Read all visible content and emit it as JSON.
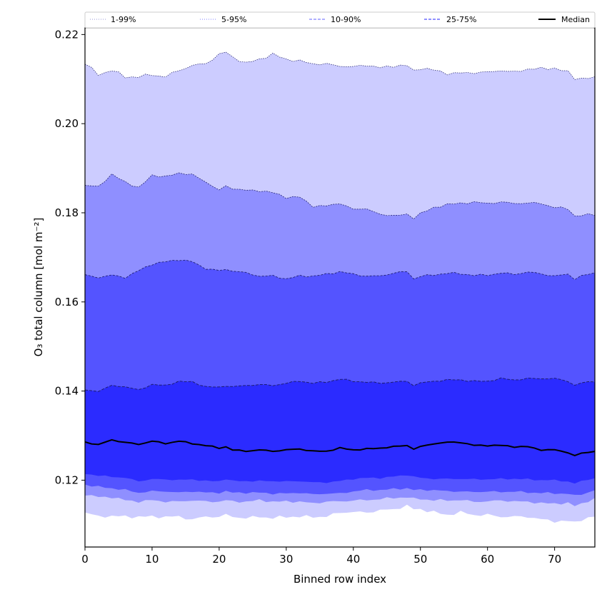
{
  "chart_data": {
    "type": "area",
    "xlabel": "Binned row index",
    "ylabel": "O₃ total column [mol m⁻²]",
    "xlim": [
      0,
      76
    ],
    "ylim": [
      0.105,
      0.2215
    ],
    "x_ticks": [
      0,
      10,
      20,
      30,
      40,
      50,
      60,
      70
    ],
    "y_ticks": [
      0.12,
      0.14,
      0.16,
      0.18,
      0.2,
      0.22
    ],
    "grid": false,
    "legend_placement": "top, horizontal row above plot",
    "legend": [
      {
        "label": "1-99%",
        "style": "dotted",
        "color": "#ccccff"
      },
      {
        "label": "5-95%",
        "style": "dotted",
        "color": "#9999ff"
      },
      {
        "label": "10-90%",
        "style": "dashed",
        "color": "#8080ff"
      },
      {
        "label": "25-75%",
        "style": "dashed",
        "color": "#4d4dff"
      },
      {
        "label": "Median",
        "style": "solid",
        "color": "#000000"
      }
    ],
    "band_colors": {
      "p1_p99": "#ccccff",
      "p5_p95": "#8f8fff",
      "p10_p90": "#5454ff",
      "p25_p75": "#2b2bff"
    },
    "knots": {
      "x": [
        0,
        2,
        4,
        6,
        8,
        10,
        12,
        14,
        16,
        18,
        20,
        21,
        22,
        24,
        26,
        28,
        30,
        32,
        34,
        36,
        38,
        40,
        42,
        44,
        46,
        48,
        49,
        50,
        52,
        54,
        56,
        58,
        60,
        62,
        64,
        66,
        68,
        70,
        72,
        73,
        74,
        76
      ],
      "p99": [
        0.2135,
        0.211,
        0.212,
        0.2105,
        0.2105,
        0.211,
        0.2105,
        0.212,
        0.213,
        0.2135,
        0.2155,
        0.216,
        0.215,
        0.2135,
        0.2145,
        0.2155,
        0.2145,
        0.214,
        0.2135,
        0.2133,
        0.213,
        0.2127,
        0.2132,
        0.2125,
        0.213,
        0.213,
        0.2118,
        0.2125,
        0.212,
        0.2113,
        0.2113,
        0.2115,
        0.2115,
        0.212,
        0.2115,
        0.2123,
        0.2123,
        0.2125,
        0.2115,
        0.2102,
        0.2102,
        0.2102
      ],
      "p95": [
        0.186,
        0.186,
        0.1885,
        0.187,
        0.1855,
        0.1885,
        0.188,
        0.189,
        0.1885,
        0.187,
        0.185,
        0.186,
        0.1855,
        0.185,
        0.185,
        0.1845,
        0.1835,
        0.1835,
        0.1815,
        0.1815,
        0.1822,
        0.1807,
        0.181,
        0.1795,
        0.1795,
        0.1795,
        0.1788,
        0.18,
        0.181,
        0.182,
        0.182,
        0.1825,
        0.182,
        0.1825,
        0.182,
        0.1823,
        0.182,
        0.1813,
        0.1808,
        0.1793,
        0.1795,
        0.1795
      ],
      "p90": [
        0.166,
        0.1655,
        0.166,
        0.1655,
        0.167,
        0.1685,
        0.169,
        0.1695,
        0.169,
        0.1675,
        0.167,
        0.1673,
        0.167,
        0.1665,
        0.1658,
        0.1658,
        0.1652,
        0.1658,
        0.1658,
        0.1662,
        0.1668,
        0.1662,
        0.1658,
        0.1658,
        0.1665,
        0.1668,
        0.1652,
        0.1658,
        0.166,
        0.1665,
        0.1663,
        0.166,
        0.166,
        0.1665,
        0.1662,
        0.1667,
        0.1663,
        0.1658,
        0.1662,
        0.1652,
        0.1658,
        0.1665
      ],
      "p75": [
        0.1402,
        0.14,
        0.1412,
        0.141,
        0.1402,
        0.1415,
        0.1412,
        0.1422,
        0.142,
        0.141,
        0.1408,
        0.1412,
        0.141,
        0.1412,
        0.1415,
        0.1412,
        0.1418,
        0.1422,
        0.1418,
        0.142,
        0.1427,
        0.1422,
        0.142,
        0.1418,
        0.142,
        0.1422,
        0.1413,
        0.1418,
        0.1422,
        0.1425,
        0.1425,
        0.1422,
        0.1422,
        0.1428,
        0.1425,
        0.1428,
        0.1428,
        0.1428,
        0.1422,
        0.1413,
        0.1418,
        0.1422
      ],
      "median": [
        0.1285,
        0.128,
        0.129,
        0.1285,
        0.128,
        0.1288,
        0.1282,
        0.1288,
        0.1282,
        0.1278,
        0.1272,
        0.1275,
        0.1268,
        0.1265,
        0.1268,
        0.1265,
        0.1268,
        0.127,
        0.1265,
        0.1265,
        0.1272,
        0.1268,
        0.127,
        0.1272,
        0.1275,
        0.1278,
        0.127,
        0.1275,
        0.1282,
        0.1285,
        0.1285,
        0.1278,
        0.1278,
        0.1278,
        0.1275,
        0.1275,
        0.1268,
        0.1268,
        0.1262,
        0.1255,
        0.126,
        0.1265
      ],
      "p25": [
        0.1215,
        0.121,
        0.1208,
        0.1205,
        0.1198,
        0.1202,
        0.1202,
        0.12,
        0.1202,
        0.1198,
        0.1198,
        0.1203,
        0.1198,
        0.1198,
        0.1198,
        0.1198,
        0.1197,
        0.1198,
        0.1195,
        0.1195,
        0.1198,
        0.1203,
        0.1205,
        0.1205,
        0.1208,
        0.1212,
        0.1208,
        0.1205,
        0.1203,
        0.1203,
        0.1203,
        0.1202,
        0.1202,
        0.1203,
        0.1203,
        0.1202,
        0.12,
        0.12,
        0.1197,
        0.1192,
        0.1198,
        0.1205
      ],
      "p10": [
        0.119,
        0.1185,
        0.1182,
        0.1178,
        0.1172,
        0.1175,
        0.1175,
        0.1172,
        0.1175,
        0.1172,
        0.1172,
        0.1175,
        0.1172,
        0.1172,
        0.1172,
        0.117,
        0.117,
        0.1172,
        0.1168,
        0.117,
        0.117,
        0.1175,
        0.1178,
        0.1178,
        0.118,
        0.1182,
        0.1178,
        0.1178,
        0.1178,
        0.1175,
        0.1175,
        0.1173,
        0.1175,
        0.1173,
        0.1175,
        0.1172,
        0.1172,
        0.117,
        0.117,
        0.1165,
        0.1168,
        0.1178
      ],
      "p5": [
        0.1168,
        0.1162,
        0.1162,
        0.1155,
        0.1152,
        0.1155,
        0.1152,
        0.1152,
        0.1155,
        0.1152,
        0.1152,
        0.1155,
        0.1152,
        0.1152,
        0.1155,
        0.1152,
        0.1152,
        0.1152,
        0.1148,
        0.1152,
        0.1152,
        0.1155,
        0.1155,
        0.1158,
        0.116,
        0.1162,
        0.1158,
        0.1158,
        0.1155,
        0.1155,
        0.1155,
        0.1152,
        0.1152,
        0.1155,
        0.1152,
        0.1152,
        0.1148,
        0.1148,
        0.1148,
        0.1142,
        0.1148,
        0.1158
      ],
      "p1": [
        0.1128,
        0.1118,
        0.112,
        0.1118,
        0.1118,
        0.1118,
        0.1118,
        0.1118,
        0.1112,
        0.1118,
        0.1118,
        0.1122,
        0.1118,
        0.1115,
        0.1118,
        0.1115,
        0.1118,
        0.1118,
        0.1118,
        0.1118,
        0.1128,
        0.1128,
        0.1128,
        0.1132,
        0.1135,
        0.1142,
        0.1135,
        0.1135,
        0.1128,
        0.1122,
        0.1128,
        0.1122,
        0.1122,
        0.1118,
        0.1118,
        0.1118,
        0.1112,
        0.1108,
        0.1108,
        0.1105,
        0.1112,
        0.1118
      ]
    }
  }
}
